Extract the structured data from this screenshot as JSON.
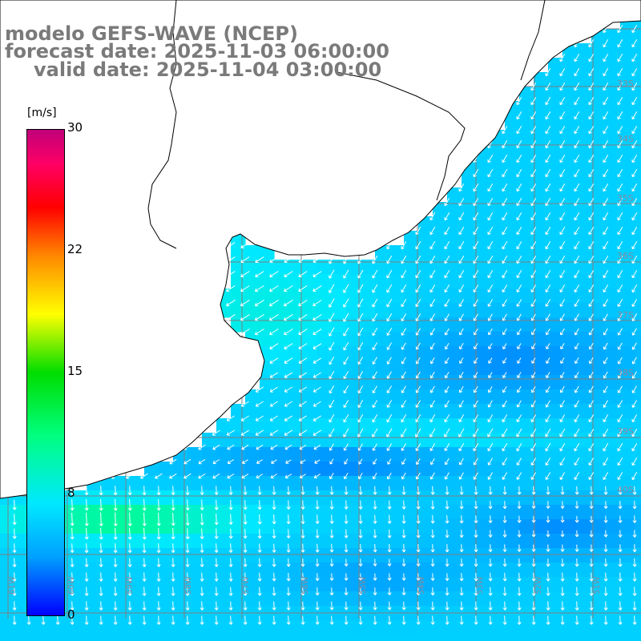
{
  "header": {
    "model_line": "modelo GEFS-WAVE (NCEP)",
    "forecast_line": "forecast date: 2025-11-03 06:00:00",
    "valid_line": "valid date: 2025-11-04 03:00:00"
  },
  "colorbar": {
    "unit": "[m/s]",
    "ticks": [
      "30",
      "22",
      "15",
      "8",
      "0"
    ],
    "tick_values": [
      30,
      22,
      15,
      8,
      0
    ],
    "range": [
      0,
      30
    ],
    "colors": [
      "#0000ff",
      "#00a0ff",
      "#00e8ff",
      "#00ff80",
      "#00dd00",
      "#ffff00",
      "#ff8800",
      "#ff0000",
      "#ff0066",
      "#c0007a"
    ]
  },
  "map": {
    "lat_labels": [
      "33S",
      "34S",
      "35S",
      "36S",
      "37S",
      "38S",
      "39S",
      "40S"
    ],
    "lon_labels": [
      "61W",
      "60W",
      "59W",
      "58W",
      "57W",
      "56W",
      "55W",
      "54W",
      "53W",
      "52W",
      "51W",
      "50W"
    ],
    "land_color": "#ffffff",
    "coast_color": "#000000",
    "grid_color": "#808080",
    "arrow_color": "#ffffff"
  },
  "chart_data": {
    "type": "heatmap",
    "variable": "wind speed with direction arrows",
    "unit": "m/s",
    "value_range": [
      0,
      30
    ],
    "typical_values": {
      "open_ocean_north": 6,
      "rio_de_la_plata": 8,
      "south_band_near_coast": 11,
      "calm_zones": 2
    },
    "grid_on": true,
    "arrow_direction": "mostly from north-east in north, from north in south band"
  }
}
